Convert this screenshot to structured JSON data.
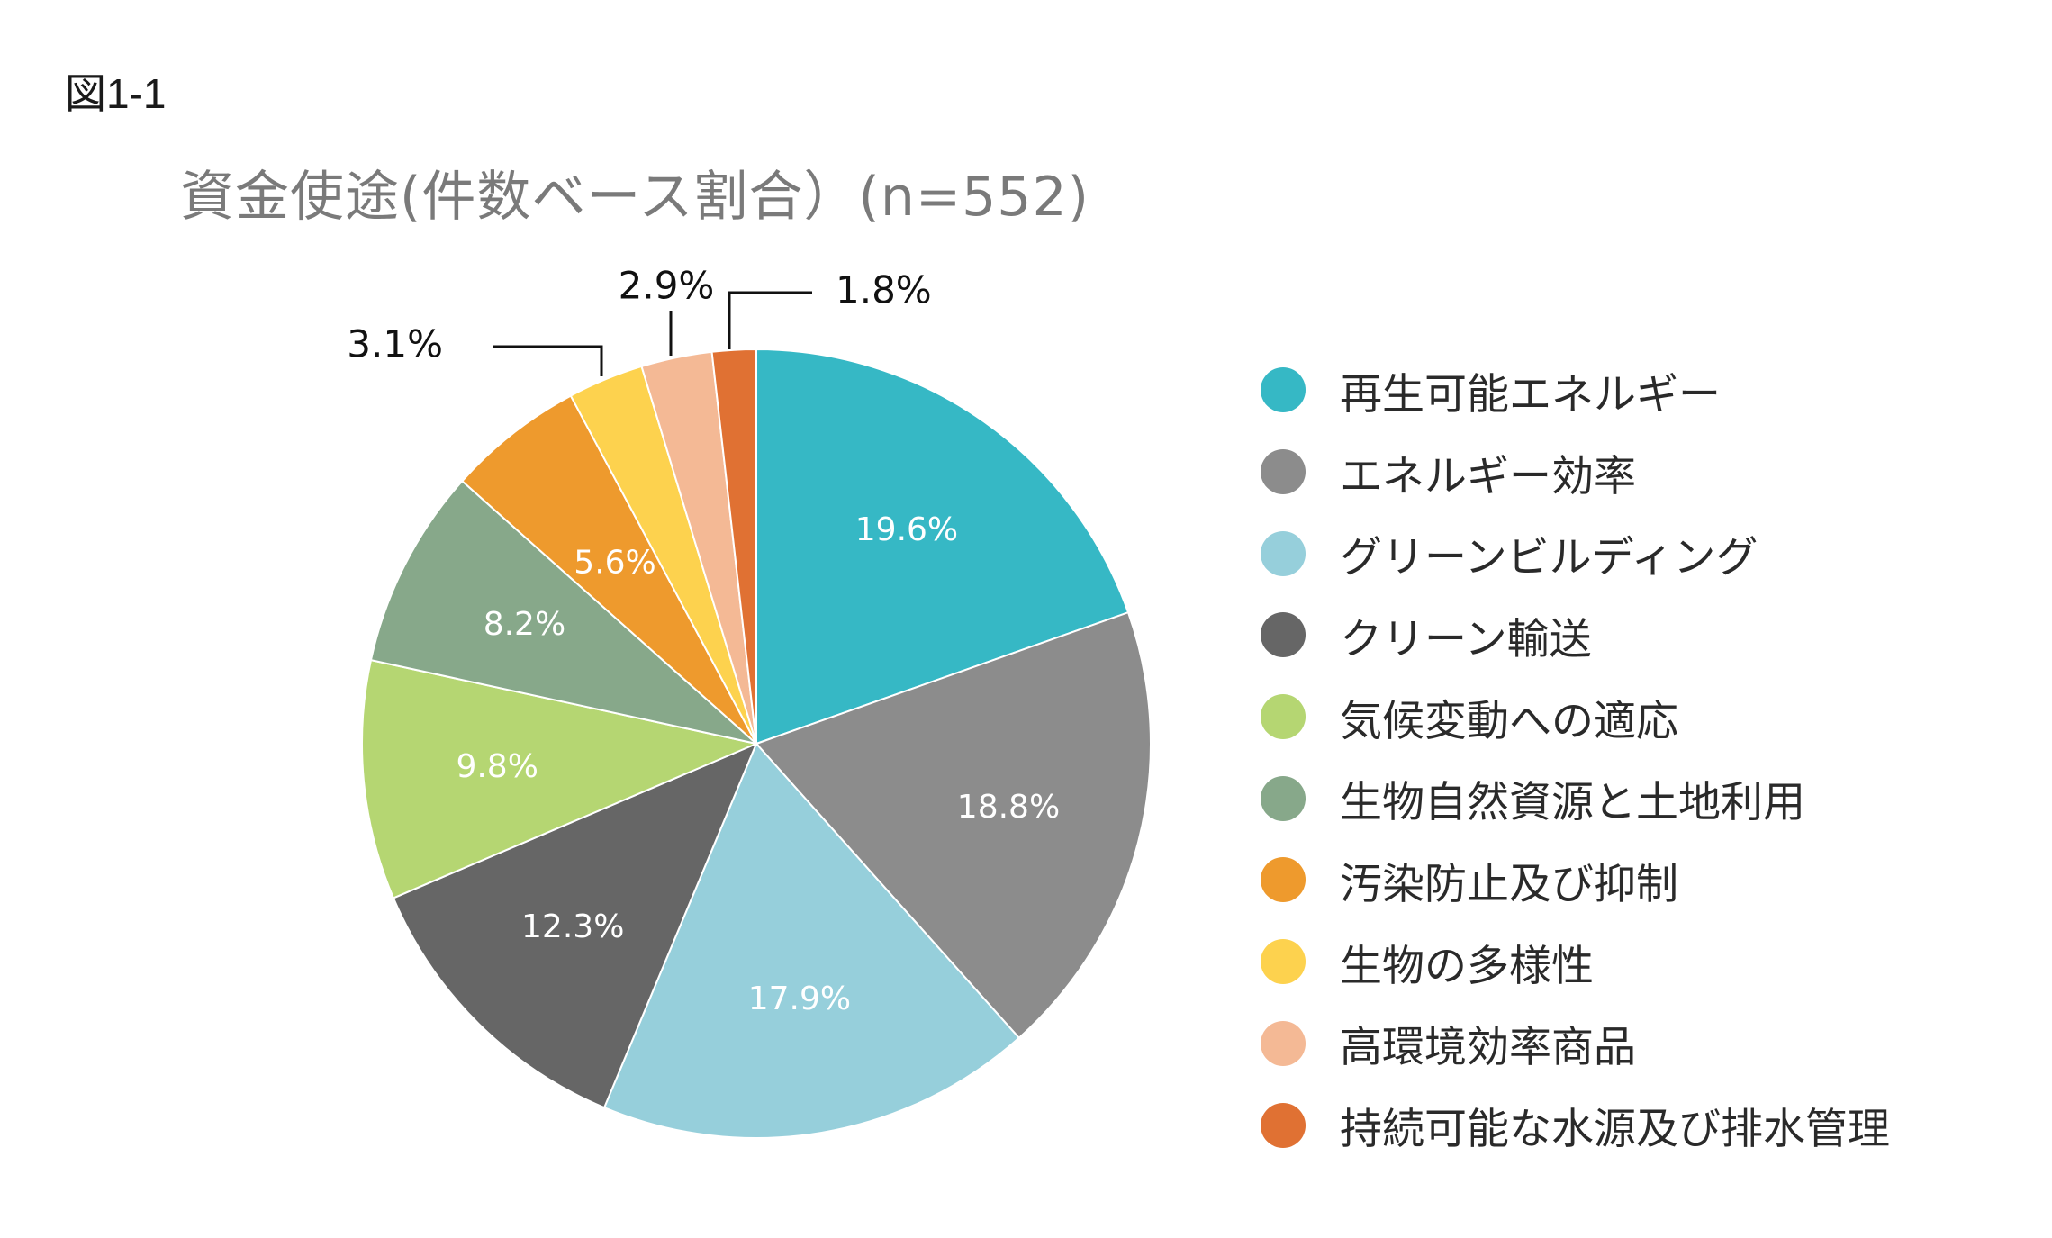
{
  "figure_label": "図1-1",
  "chart_data": {
    "type": "pie",
    "title": "資金使途(件数ベース割合）(n=552)",
    "legend_position": "right",
    "slices": [
      {
        "label": "再生可能エネルギー",
        "value": 19.6,
        "display": "19.6%",
        "color": "#36B8C5"
      },
      {
        "label": "エネルギー効率",
        "value": 18.8,
        "display": "18.8%",
        "color": "#8C8C8C"
      },
      {
        "label": "グリーンビルディング",
        "value": 17.9,
        "display": "17.9%",
        "color": "#96CFDB"
      },
      {
        "label": "クリーン輸送",
        "value": 12.3,
        "display": "12.3%",
        "color": "#666666"
      },
      {
        "label": "気候変動への適応",
        "value": 9.8,
        "display": "9.8%",
        "color": "#B5D672"
      },
      {
        "label": "生物自然資源と土地利用",
        "value": 8.2,
        "display": "8.2%",
        "color": "#87A88A"
      },
      {
        "label": "汚染防止及び抑制",
        "value": 5.6,
        "display": "5.6%",
        "color": "#EE9A2D"
      },
      {
        "label": "生物の多様性",
        "value": 3.1,
        "display": "3.1%",
        "color": "#FDD24E"
      },
      {
        "label": "高環境効率商品",
        "value": 2.9,
        "display": "2.9%",
        "color": "#F4B995"
      },
      {
        "label": "持続可能な水源及び排水管理",
        "value": 1.8,
        "display": "1.8%",
        "color": "#E07133"
      }
    ]
  }
}
